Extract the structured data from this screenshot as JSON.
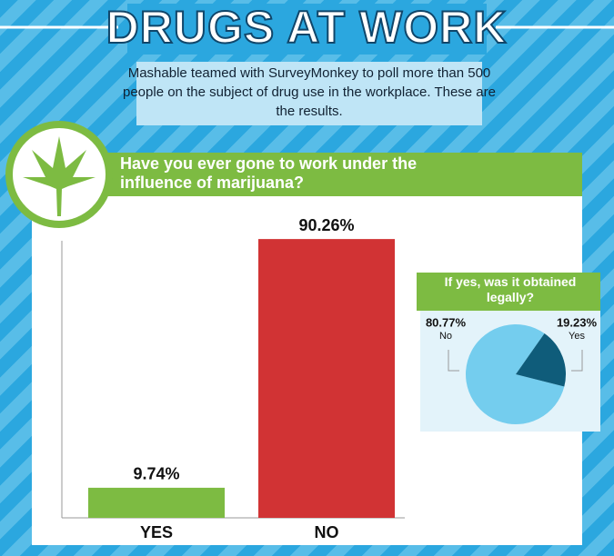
{
  "title": "DRUGS AT WORK",
  "subtitle": "Mashable teamed with SurveyMonkey to poll more than 500 people on the subject of drug use in the workplace. These are the results.",
  "chart_data": [
    {
      "type": "bar",
      "title": "Have you ever gone to work under the influence of marijuana?",
      "categories": [
        "YES",
        "NO"
      ],
      "values": [
        9.74,
        90.26
      ],
      "value_labels": [
        "9.74%",
        "90.26%"
      ],
      "colors": [
        "#7dbb42",
        "#d13334"
      ],
      "ylim": [
        0,
        100
      ]
    },
    {
      "type": "pie",
      "title": "If yes, was it obtained legally?",
      "categories": [
        "No",
        "Yes"
      ],
      "values": [
        80.77,
        19.23
      ],
      "value_labels": [
        "80.77%",
        "19.23%"
      ],
      "colors": [
        "#74cdee",
        "#0f5c7a"
      ]
    }
  ]
}
